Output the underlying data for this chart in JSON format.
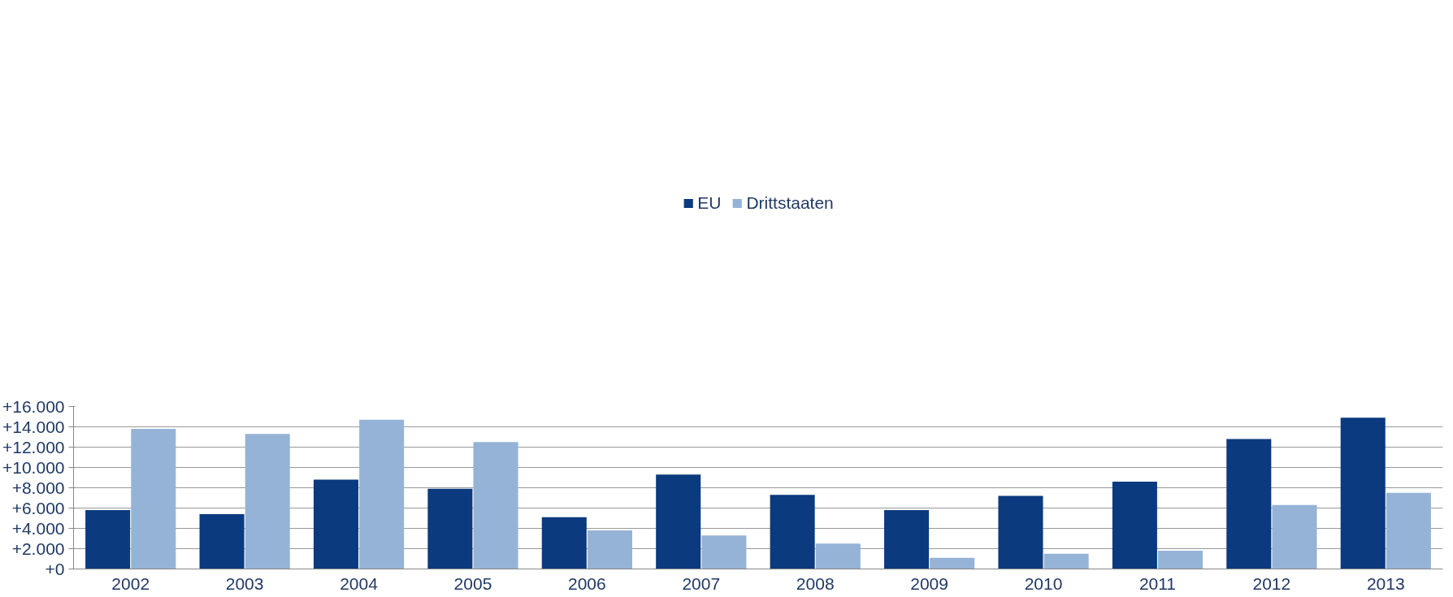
{
  "chart_data": {
    "type": "bar",
    "categories": [
      "2002",
      "2003",
      "2004",
      "2005",
      "2006",
      "2007",
      "2008",
      "2009",
      "2010",
      "2011",
      "2012",
      "2013"
    ],
    "series": [
      {
        "name": "EU",
        "color": "#0b3a7e",
        "values": [
          5800,
          5400,
          8800,
          7900,
          5100,
          9300,
          7300,
          5800,
          7200,
          8600,
          12800,
          14900
        ]
      },
      {
        "name": "Drittstaaten",
        "color": "#95b3d7",
        "values": [
          13800,
          13300,
          14700,
          12500,
          3800,
          3300,
          2500,
          1100,
          1500,
          1800,
          6300,
          7500
        ]
      }
    ],
    "ylim": [
      0,
      16000
    ],
    "yticks": [
      {
        "value": 0,
        "label": "+0"
      },
      {
        "value": 2000,
        "label": "+2.000"
      },
      {
        "value": 4000,
        "label": "+4.000"
      },
      {
        "value": 6000,
        "label": "+6.000"
      },
      {
        "value": 8000,
        "label": "+8.000"
      },
      {
        "value": 10000,
        "label": "+10.000"
      },
      {
        "value": 12000,
        "label": "+12.000"
      },
      {
        "value": 14000,
        "label": "+14.000"
      },
      {
        "value": 16000,
        "label": "+16.000"
      }
    ],
    "grid": "y",
    "legend": "top"
  }
}
